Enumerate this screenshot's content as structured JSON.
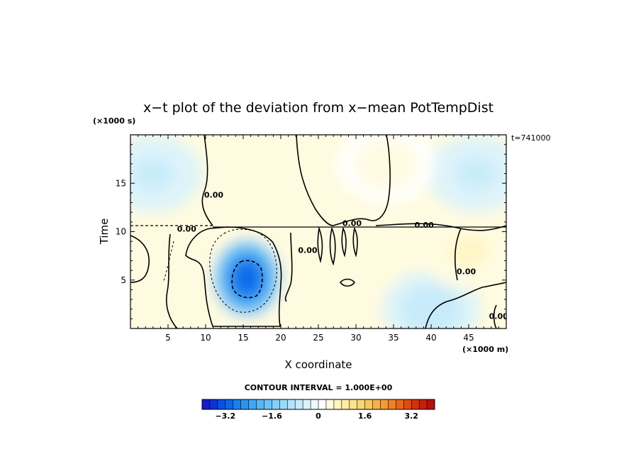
{
  "chart_data": {
    "type": "heatmap",
    "title": "x−t plot of the deviation from x−mean PotTempDist",
    "xlabel": "X coordinate",
    "ylabel": "Time",
    "x_unit": "(×1000 m)",
    "y_unit": "(×1000 s)",
    "time_label": "t=741000",
    "contour_interval_label": "CONTOUR INTERVAL = 1.000E+00",
    "xlim": [
      0,
      50
    ],
    "ylim": [
      0,
      20
    ],
    "x_ticks": [
      5,
      10,
      15,
      20,
      25,
      30,
      35,
      40,
      45
    ],
    "y_ticks": [
      5,
      10,
      15
    ],
    "contour_labels": [
      {
        "text": "0.00",
        "x": 6.2,
        "y": 10.0
      },
      {
        "text": "0.00",
        "x": 28.2,
        "y": 10.6
      },
      {
        "text": "0.00",
        "x": 37.8,
        "y": 10.4
      },
      {
        "text": "0.00",
        "x": 9.8,
        "y": 13.5
      },
      {
        "text": "0.00",
        "x": 22.3,
        "y": 7.8
      },
      {
        "text": "0.00",
        "x": 43.4,
        "y": 5.6
      },
      {
        "text": "0.00",
        "x": 47.7,
        "y": 1.0
      }
    ],
    "colorbar": {
      "min": -4.0,
      "max": 4.0,
      "ticks": [
        -3.2,
        -1.6,
        0,
        1.6,
        3.2
      ],
      "tick_labels": [
        "−3.2",
        "−1.6",
        "0",
        "1.6",
        "3.2"
      ],
      "colors": [
        "#1a1acc",
        "#0d33d6",
        "#0a4fe0",
        "#0d66e8",
        "#1a80ef",
        "#2b93f2",
        "#3fa6f4",
        "#55b6f5",
        "#6cc4f7",
        "#84d0f8",
        "#9cdaf8",
        "#b2e3f9",
        "#c7ebfa",
        "#dbf3fb",
        "#edf9fc",
        "#ffffff",
        "#fffbe0",
        "#fff5c2",
        "#fdeda6",
        "#fbe38c",
        "#f9d673",
        "#f7c65c",
        "#f5b246",
        "#f39b33",
        "#ef8124",
        "#e96619",
        "#e04b12",
        "#d4320e",
        "#c71e0c",
        "#b8100a"
      ]
    },
    "fields": {
      "background": 0.35,
      "features": [
        {
          "label": "cold core",
          "x": 15.5,
          "y": 5.2,
          "value": -3.0
        },
        {
          "label": "upper cool",
          "x": 3.0,
          "y": 16.0,
          "value": -0.6
        },
        {
          "label": "upper cool",
          "x": 46.0,
          "y": 16.0,
          "value": -0.6
        },
        {
          "label": "upper warm",
          "x": 23.0,
          "y": 16.5,
          "value": 0.5
        },
        {
          "label": "upper warm",
          "x": 34.0,
          "y": 17.0,
          "value": 0.4
        },
        {
          "label": "lower cool",
          "x": 40.0,
          "y": 2.0,
          "value": -0.7
        },
        {
          "label": "lower warm",
          "x": 45.0,
          "y": 8.0,
          "value": 0.6
        }
      ]
    }
  }
}
